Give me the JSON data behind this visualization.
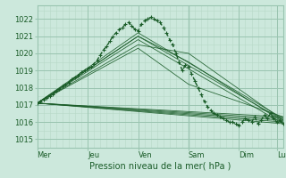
{
  "bg_color": "#cce8dc",
  "grid_minor_color": "#b8d8c8",
  "grid_major_color": "#99c4b0",
  "line_color": "#1a5c28",
  "xlabel": "Pression niveau de la mer( hPa )",
  "ylim": [
    1014.5,
    1022.8
  ],
  "yticks": [
    1015,
    1016,
    1017,
    1018,
    1019,
    1020,
    1021,
    1022
  ],
  "day_labels": [
    "Mer",
    "Jeu",
    "Ven",
    "Sam",
    "Dim",
    "Lu"
  ],
  "day_positions": [
    0,
    48,
    96,
    144,
    192,
    228
  ],
  "total_hours": 234,
  "main_line_x": [
    0,
    3,
    6,
    9,
    12,
    15,
    18,
    21,
    24,
    27,
    30,
    33,
    36,
    39,
    42,
    45,
    48,
    51,
    54,
    57,
    60,
    63,
    66,
    69,
    72,
    75,
    78,
    81,
    84,
    87,
    90,
    93,
    96,
    99,
    102,
    105,
    108,
    111,
    114,
    117,
    120,
    123,
    126,
    129,
    132,
    135,
    138,
    141,
    144,
    147,
    150,
    153,
    156,
    159,
    162,
    165,
    168,
    171,
    174,
    177,
    180,
    183,
    186,
    189,
    192,
    195,
    198,
    201,
    204,
    207,
    210,
    213,
    216,
    219,
    222,
    225,
    228,
    231,
    234
  ],
  "main_line_y": [
    1017.1,
    1017.2,
    1017.3,
    1017.4,
    1017.5,
    1017.6,
    1017.8,
    1017.9,
    1018.1,
    1018.2,
    1018.3,
    1018.5,
    1018.6,
    1018.7,
    1018.9,
    1019.0,
    1019.1,
    1019.2,
    1019.4,
    1019.6,
    1019.9,
    1020.2,
    1020.4,
    1020.7,
    1021.0,
    1021.2,
    1021.4,
    1021.5,
    1021.7,
    1021.8,
    1021.6,
    1021.4,
    1021.3,
    1021.7,
    1021.9,
    1022.0,
    1022.1,
    1022.0,
    1021.9,
    1021.8,
    1021.5,
    1021.2,
    1020.8,
    1020.5,
    1020.0,
    1019.5,
    1019.0,
    1019.3,
    1019.2,
    1018.8,
    1018.4,
    1018.0,
    1017.6,
    1017.2,
    1016.9,
    1016.7,
    1016.5,
    1016.4,
    1016.3,
    1016.2,
    1016.1,
    1016.0,
    1016.0,
    1015.9,
    1015.8,
    1016.0,
    1016.2,
    1016.1,
    1016.0,
    1016.3,
    1015.9,
    1016.1,
    1016.4,
    1016.2,
    1016.5,
    1016.2,
    1016.0,
    1016.1,
    1015.9
  ],
  "ensemble_lines": [
    {
      "x": [
        0,
        234
      ],
      "y": [
        1017.1,
        1016.0
      ]
    },
    {
      "x": [
        0,
        234
      ],
      "y": [
        1017.1,
        1015.9
      ]
    },
    {
      "x": [
        0,
        234
      ],
      "y": [
        1017.1,
        1016.1
      ]
    },
    {
      "x": [
        0,
        234
      ],
      "y": [
        1017.1,
        1016.2
      ]
    },
    {
      "x": [
        0,
        234
      ],
      "y": [
        1017.1,
        1016.3
      ]
    },
    {
      "x": [
        0,
        96,
        234
      ],
      "y": [
        1017.1,
        1021.0,
        1016.1
      ]
    },
    {
      "x": [
        0,
        96,
        234
      ],
      "y": [
        1017.1,
        1020.8,
        1015.9
      ]
    },
    {
      "x": [
        0,
        96,
        234
      ],
      "y": [
        1017.1,
        1021.2,
        1016.2
      ]
    },
    {
      "x": [
        0,
        96,
        144,
        234
      ],
      "y": [
        1017.1,
        1021.0,
        1019.5,
        1016.0
      ]
    },
    {
      "x": [
        0,
        96,
        144,
        234
      ],
      "y": [
        1017.1,
        1020.5,
        1020.0,
        1016.1
      ]
    },
    {
      "x": [
        0,
        96,
        144,
        234
      ],
      "y": [
        1017.1,
        1020.3,
        1018.2,
        1016.3
      ]
    }
  ]
}
